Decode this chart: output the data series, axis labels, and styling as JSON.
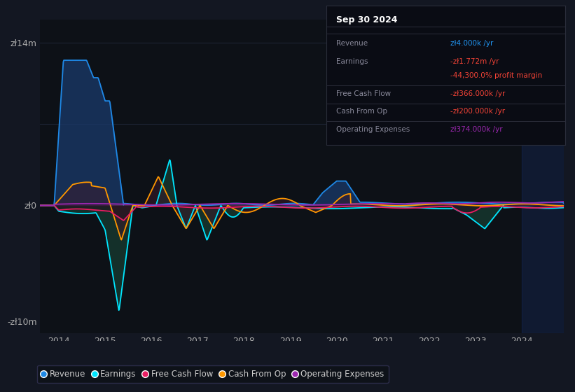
{
  "bg_color": "#131722",
  "chart_bg": "#0d1117",
  "title_box": {
    "date": "Sep 30 2024",
    "rows": [
      {
        "label": "Revenue",
        "value": "zł4.000k /yr",
        "value_color": "#2196f3"
      },
      {
        "label": "Earnings",
        "value": "-zł1.772m /yr",
        "value_color": "#f44336"
      },
      {
        "label": "",
        "value": "-44,300.0% profit margin",
        "value_color": "#f44336"
      },
      {
        "label": "Free Cash Flow",
        "value": "-zł366.000k /yr",
        "value_color": "#f44336"
      },
      {
        "label": "Cash From Op",
        "value": "-zł200.000k /yr",
        "value_color": "#f44336"
      },
      {
        "label": "Operating Expenses",
        "value": "zł374.000k /yr",
        "value_color": "#9c27b0"
      }
    ]
  },
  "y_labels": [
    "zł14m",
    "zł0",
    "-zł10m"
  ],
  "y_values": [
    14000000,
    0,
    -10000000
  ],
  "x_ticks": [
    "2014",
    "2015",
    "2016",
    "2017",
    "2018",
    "2019",
    "2020",
    "2021",
    "2022",
    "2023",
    "2024"
  ],
  "ylim": [
    -11000000,
    16000000
  ],
  "xlim": [
    2013.6,
    2024.9
  ],
  "legend": [
    {
      "label": "Revenue",
      "color": "#1e88e5"
    },
    {
      "label": "Earnings",
      "color": "#00e5ff"
    },
    {
      "label": "Free Cash Flow",
      "color": "#e91e63"
    },
    {
      "label": "Cash From Op",
      "color": "#ff9800"
    },
    {
      "label": "Operating Expenses",
      "color": "#9c27b0"
    }
  ]
}
